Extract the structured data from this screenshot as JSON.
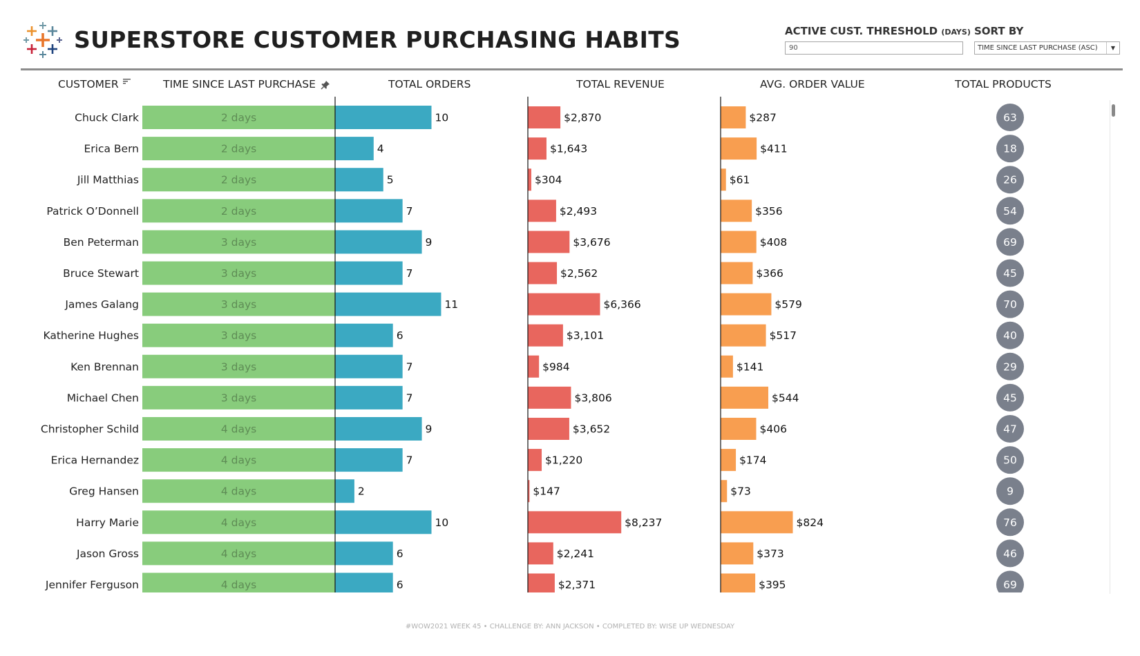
{
  "header": {
    "title": "SUPERSTORE CUSTOMER PURCHASING HABITS",
    "threshold_label": "ACTIVE CUST. THRESHOLD",
    "threshold_unit": "(DAYS)",
    "threshold_value": "90",
    "sort_label": "SORT BY",
    "sort_value": "TIME SINCE LAST PURCHASE (ASC)"
  },
  "columns": {
    "customer": "CUSTOMER",
    "time": "TIME SINCE LAST PURCHASE",
    "orders": "TOTAL ORDERS",
    "revenue": "TOTAL REVENUE",
    "aov": "AVG. ORDER VALUE",
    "products": "TOTAL PRODUCTS"
  },
  "colors": {
    "time_bar": "#88cc7c",
    "time_text": "#5e8c55",
    "orders_bar": "#3ba9c2",
    "revenue_bar": "#e8665e",
    "aov_bar": "#f89e50",
    "products_circle": "#7a808c",
    "axis": "#111111"
  },
  "chart_data": {
    "type": "table",
    "title": "SUPERSTORE CUSTOMER PURCHASING HABITS",
    "rows": [
      {
        "customer": "Chuck Clark",
        "days_label": "2 days",
        "orders": 10,
        "revenue": 2870,
        "revenue_label": "$2,870",
        "aov": 287,
        "aov_label": "$287",
        "products": 63
      },
      {
        "customer": "Erica Bern",
        "days_label": "2 days",
        "orders": 4,
        "revenue": 1643,
        "revenue_label": "$1,643",
        "aov": 411,
        "aov_label": "$411",
        "products": 18
      },
      {
        "customer": "Jill Matthias",
        "days_label": "2 days",
        "orders": 5,
        "revenue": 304,
        "revenue_label": "$304",
        "aov": 61,
        "aov_label": "$61",
        "products": 26
      },
      {
        "customer": "Patrick O’Donnell",
        "days_label": "2 days",
        "orders": 7,
        "revenue": 2493,
        "revenue_label": "$2,493",
        "aov": 356,
        "aov_label": "$356",
        "products": 54
      },
      {
        "customer": "Ben Peterman",
        "days_label": "3 days",
        "orders": 9,
        "revenue": 3676,
        "revenue_label": "$3,676",
        "aov": 408,
        "aov_label": "$408",
        "products": 69
      },
      {
        "customer": "Bruce Stewart",
        "days_label": "3 days",
        "orders": 7,
        "revenue": 2562,
        "revenue_label": "$2,562",
        "aov": 366,
        "aov_label": "$366",
        "products": 45
      },
      {
        "customer": "James Galang",
        "days_label": "3 days",
        "orders": 11,
        "revenue": 6366,
        "revenue_label": "$6,366",
        "aov": 579,
        "aov_label": "$579",
        "products": 70
      },
      {
        "customer": "Katherine Hughes",
        "days_label": "3 days",
        "orders": 6,
        "revenue": 3101,
        "revenue_label": "$3,101",
        "aov": 517,
        "aov_label": "$517",
        "products": 40
      },
      {
        "customer": "Ken Brennan",
        "days_label": "3 days",
        "orders": 7,
        "revenue": 984,
        "revenue_label": "$984",
        "aov": 141,
        "aov_label": "$141",
        "products": 29
      },
      {
        "customer": "Michael Chen",
        "days_label": "3 days",
        "orders": 7,
        "revenue": 3806,
        "revenue_label": "$3,806",
        "aov": 544,
        "aov_label": "$544",
        "products": 45
      },
      {
        "customer": "Christopher Schild",
        "days_label": "4 days",
        "orders": 9,
        "revenue": 3652,
        "revenue_label": "$3,652",
        "aov": 406,
        "aov_label": "$406",
        "products": 47
      },
      {
        "customer": "Erica Hernandez",
        "days_label": "4 days",
        "orders": 7,
        "revenue": 1220,
        "revenue_label": "$1,220",
        "aov": 174,
        "aov_label": "$174",
        "products": 50
      },
      {
        "customer": "Greg Hansen",
        "days_label": "4 days",
        "orders": 2,
        "revenue": 147,
        "revenue_label": "$147",
        "aov": 73,
        "aov_label": "$73",
        "products": 9
      },
      {
        "customer": "Harry Marie",
        "days_label": "4 days",
        "orders": 10,
        "revenue": 8237,
        "revenue_label": "$8,237",
        "aov": 824,
        "aov_label": "$824",
        "products": 76
      },
      {
        "customer": "Jason Gross",
        "days_label": "4 days",
        "orders": 6,
        "revenue": 2241,
        "revenue_label": "$2,241",
        "aov": 373,
        "aov_label": "$373",
        "products": 46
      },
      {
        "customer": "Jennifer Ferguson",
        "days_label": "4 days",
        "orders": 6,
        "revenue": 2371,
        "revenue_label": "$2,371",
        "aov": 395,
        "aov_label": "$395",
        "products": 69
      }
    ],
    "orders_max": 20,
    "revenue_max": 17000,
    "aov_max": 2200
  },
  "footer": {
    "text": "#WOW2021 WEEK 45  •  CHALLENGE BY: ANN JACKSON  •  COMPLETED BY: WISE UP WEDNESDAY"
  }
}
